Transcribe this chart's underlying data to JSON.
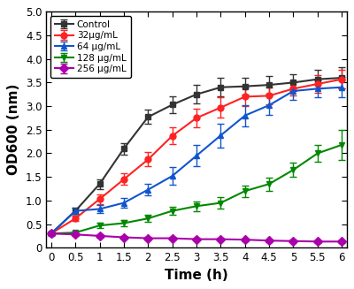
{
  "time": [
    0,
    0.5,
    1,
    1.5,
    2,
    2.5,
    3,
    3.5,
    4,
    4.5,
    5,
    5.5,
    6
  ],
  "control": {
    "y": [
      0.3,
      0.78,
      1.35,
      2.1,
      2.77,
      3.03,
      3.25,
      3.4,
      3.42,
      3.45,
      3.5,
      3.57,
      3.6
    ],
    "yerr": [
      0.04,
      0.06,
      0.1,
      0.12,
      0.15,
      0.18,
      0.2,
      0.2,
      0.18,
      0.18,
      0.18,
      0.2,
      0.22
    ],
    "color": "#333333",
    "marker": "s",
    "label": "Control"
  },
  "c32": {
    "y": [
      0.3,
      0.62,
      1.03,
      1.45,
      1.87,
      2.37,
      2.75,
      2.97,
      3.2,
      3.22,
      3.37,
      3.47,
      3.57
    ],
    "yerr": [
      0.03,
      0.06,
      0.1,
      0.12,
      0.15,
      0.18,
      0.2,
      0.22,
      0.2,
      0.18,
      0.15,
      0.18,
      0.2
    ],
    "color": "#ff2222",
    "marker": "o",
    "label": "32μg/mL"
  },
  "c64": {
    "y": [
      0.3,
      0.78,
      0.82,
      0.95,
      1.23,
      1.52,
      1.95,
      2.38,
      2.8,
      3.02,
      3.32,
      3.37,
      3.4
    ],
    "yerr": [
      0.03,
      0.06,
      0.08,
      0.1,
      0.12,
      0.18,
      0.22,
      0.25,
      0.22,
      0.2,
      0.18,
      0.18,
      0.22
    ],
    "color": "#1155cc",
    "marker": "^",
    "label": "64 μg/mL"
  },
  "c128": {
    "y": [
      0.3,
      0.32,
      0.47,
      0.52,
      0.62,
      0.78,
      0.88,
      0.95,
      1.2,
      1.35,
      1.65,
      2.0,
      2.18
    ],
    "yerr": [
      0.03,
      0.04,
      0.05,
      0.06,
      0.07,
      0.08,
      0.1,
      0.12,
      0.12,
      0.14,
      0.15,
      0.17,
      0.32
    ],
    "color": "#008800",
    "marker": "v",
    "label": "128 μg/mL"
  },
  "c256": {
    "y": [
      0.3,
      0.28,
      0.25,
      0.22,
      0.2,
      0.2,
      0.18,
      0.18,
      0.17,
      0.15,
      0.14,
      0.13,
      0.13
    ],
    "yerr": [
      0.03,
      0.03,
      0.03,
      0.03,
      0.03,
      0.03,
      0.03,
      0.03,
      0.03,
      0.03,
      0.03,
      0.03,
      0.03
    ],
    "color": "#aa00aa",
    "marker": "D",
    "label": "256 μg/mL"
  },
  "xlabel": "Time (h)",
  "ylabel": "OD600 (nm)",
  "xlim": [
    -0.1,
    6.1
  ],
  "ylim": [
    0,
    5.0
  ],
  "yticks": [
    0.0,
    0.5,
    1.0,
    1.5,
    2.0,
    2.5,
    3.0,
    3.5,
    4.0,
    4.5,
    5.0
  ],
  "ytick_labels": [
    "0",
    "0.5",
    "1.0",
    "1.5",
    "2.0",
    "2.5",
    "3.0",
    "3.5",
    "4.0",
    "4.5",
    "5.0"
  ],
  "xticks": [
    0,
    0.5,
    1,
    1.5,
    2,
    2.5,
    3,
    3.5,
    4,
    4.5,
    5,
    5.5,
    6
  ],
  "xtick_labels": [
    "0",
    "0.5",
    "1",
    "1.5",
    "2",
    "2.5",
    "3",
    "3.5",
    "4",
    "4.5",
    "5",
    "5.5",
    "6"
  ],
  "background_color": "#ffffff",
  "linewidth": 1.5,
  "markersize": 5,
  "capsize": 3,
  "elinewidth": 1.0
}
